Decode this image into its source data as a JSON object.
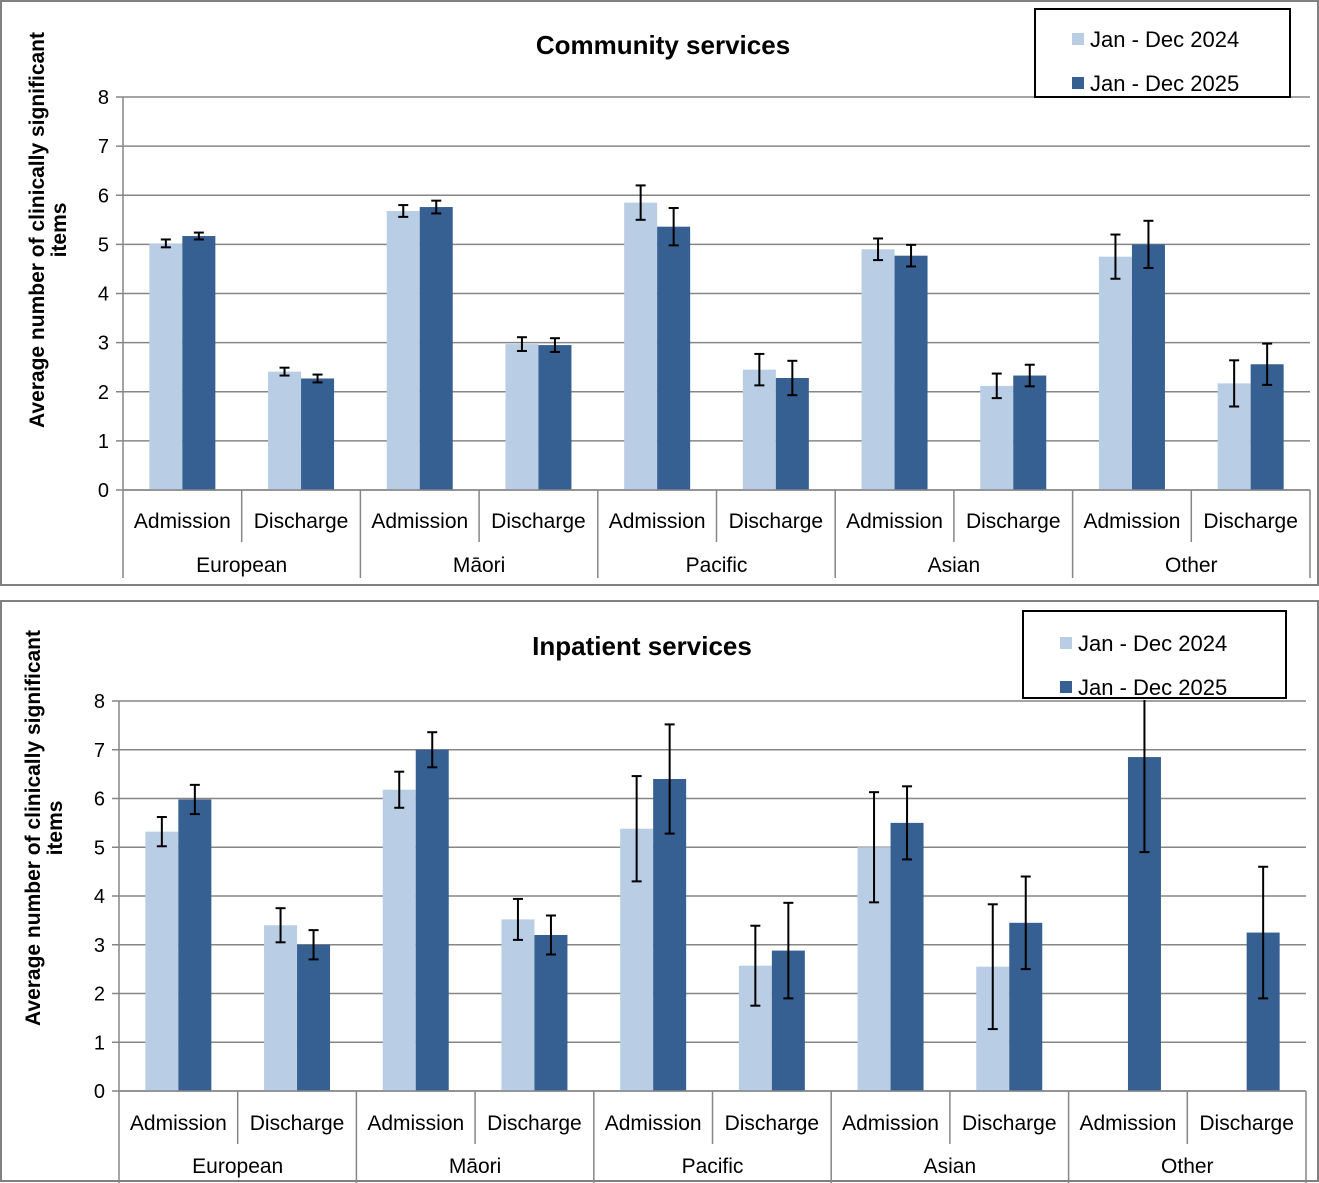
{
  "chart_data": [
    {
      "type": "bar",
      "title": "Community services",
      "ylabel": "Average number of clinically significant items",
      "ylim": [
        0,
        8
      ],
      "yticks": [
        "0",
        "1",
        "2",
        "3",
        "4",
        "5",
        "6",
        "7",
        "8"
      ],
      "groups": [
        "European",
        "Māori",
        "Pacific",
        "Asian",
        "Other"
      ],
      "subcategories": [
        "Admission",
        "Discharge"
      ],
      "legend_position": "top-right",
      "grid": true,
      "series": [
        {
          "name": "Jan - Dec 2024",
          "color": "#b9cde5",
          "values": [
            5.02,
            2.41,
            5.68,
            2.97,
            5.85,
            2.45,
            4.9,
            2.12,
            4.75,
            2.17
          ],
          "errors": [
            0.08,
            0.08,
            0.12,
            0.14,
            0.35,
            0.32,
            0.22,
            0.25,
            0.45,
            0.47
          ]
        },
        {
          "name": "Jan - Dec 2025",
          "color": "#376092",
          "values": [
            5.17,
            2.27,
            5.76,
            2.95,
            5.36,
            2.28,
            4.77,
            2.33,
            5.0,
            2.56
          ],
          "errors": [
            0.07,
            0.08,
            0.13,
            0.14,
            0.38,
            0.35,
            0.22,
            0.22,
            0.48,
            0.42
          ]
        }
      ]
    },
    {
      "type": "bar",
      "title": "Inpatient services",
      "ylabel": "Average number of clinically significant items",
      "ylim": [
        0,
        8
      ],
      "yticks": [
        "0",
        "1",
        "2",
        "3",
        "4",
        "5",
        "6",
        "7",
        "8"
      ],
      "groups": [
        "European",
        "Māori",
        "Pacific",
        "Asian",
        "Other"
      ],
      "subcategories": [
        "Admission",
        "Discharge"
      ],
      "legend_position": "top-right",
      "grid": true,
      "series": [
        {
          "name": "Jan - Dec 2024",
          "color": "#b9cde5",
          "values": [
            5.32,
            3.4,
            6.18,
            3.52,
            5.38,
            2.57,
            5.0,
            2.55,
            null,
            null
          ],
          "errors": [
            0.3,
            0.35,
            0.37,
            0.42,
            1.08,
            0.82,
            1.13,
            1.28,
            null,
            null
          ]
        },
        {
          "name": "Jan - Dec 2025",
          "color": "#376092",
          "values": [
            5.98,
            3.0,
            7.0,
            3.2,
            6.4,
            2.88,
            5.5,
            3.45,
            6.85,
            3.25
          ],
          "errors": [
            0.3,
            0.3,
            0.36,
            0.4,
            1.12,
            0.98,
            0.75,
            0.95,
            1.95,
            1.35
          ]
        }
      ]
    }
  ]
}
